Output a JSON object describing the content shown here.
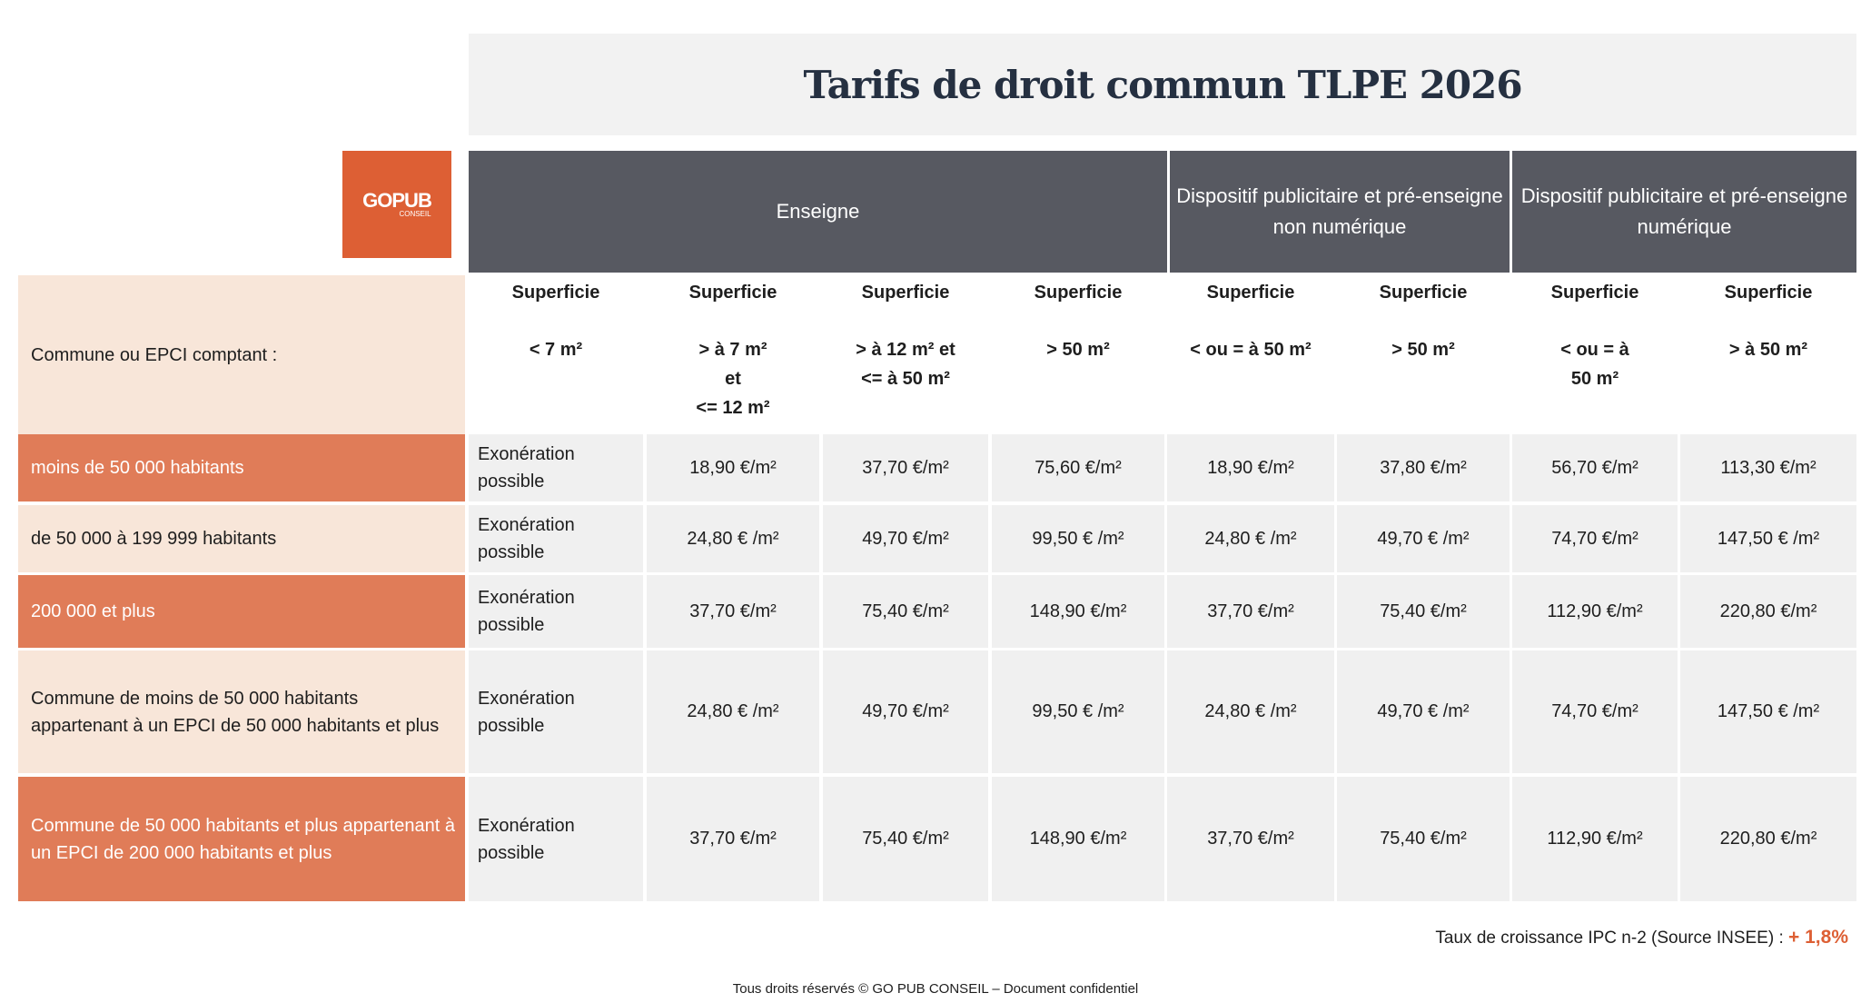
{
  "title": "Tarifs de droit commun TLPE 2026",
  "logo": {
    "main": "GOPUB",
    "sub": "CONSEIL"
  },
  "groups": {
    "enseigne": "Enseigne",
    "non_numerique": "Dispositif publicitaire et pré-enseigne non numérique",
    "numerique": "Dispositif publicitaire et pré-enseigne numérique"
  },
  "header_label": "Commune ou EPCI comptant :",
  "columns": [
    {
      "sup": "Superficie",
      "range": "< 7 m²"
    },
    {
      "sup": "Superficie",
      "range": "> à 7 m²\net\n<= 12 m²"
    },
    {
      "sup": "Superficie",
      "range": "> à 12 m² et\n<= à 50 m²"
    },
    {
      "sup": "Superficie",
      "range": "> 50 m²"
    },
    {
      "sup": "Superficie",
      "range": "< ou = à 50 m²"
    },
    {
      "sup": "Superficie",
      "range": "> 50 m²"
    },
    {
      "sup": "Superficie",
      "range": "< ou = à\n50 m²"
    },
    {
      "sup": "Superficie",
      "range": "> à 50 m²"
    }
  ],
  "rows": [
    {
      "label": "moins de 50 000 habitants",
      "values": [
        "Exonération possible",
        "18,90 €/m²",
        "37,70 €/m²",
        "75,60 €/m²",
        "18,90 €/m²",
        "37,80 €/m²",
        "56,70 €/m²",
        "113,30 €/m²"
      ]
    },
    {
      "label": "de 50 000 à 199 999 habitants",
      "values": [
        "Exonération possible",
        "24,80 € /m²",
        "49,70 €/m²",
        "99,50 € /m²",
        "24,80 € /m²",
        "49,70 € /m²",
        "74,70 €/m²",
        "147,50 € /m²"
      ]
    },
    {
      "label": "200 000 et plus",
      "values": [
        "Exonération possible",
        "37,70 €/m²",
        "75,40 €/m²",
        "148,90 €/m²",
        "37,70 €/m²",
        "75,40 €/m²",
        "112,90 €/m²",
        "220,80 €/m²"
      ]
    },
    {
      "label": "Commune de moins de 50 000 habitants appartenant à un EPCI de 50 000 habitants et plus",
      "values": [
        "Exonération possible",
        "24,80 € /m²",
        "49,70 €/m²",
        "99,50 € /m²",
        "24,80 € /m²",
        "49,70 € /m²",
        "74,70 €/m²",
        "147,50 € /m²"
      ]
    },
    {
      "label": "Commune de 50 000 habitants et plus appartenant à un EPCI de 200 000 habitants et plus",
      "values": [
        "Exonération possible",
        "37,70 €/m²",
        "75,40 €/m²",
        "148,90 €/m²",
        "37,70 €/m²",
        "75,40 €/m²",
        "112,90 €/m²",
        "220,80 €/m²"
      ]
    }
  ],
  "footer": {
    "rate_label": "Taux de croissance IPC n-2 (Source INSEE) :",
    "rate_value": "+ 1,8%",
    "copyright": "Tous droits réservés ©  GO PUB CONSEIL – Document confidentiel"
  },
  "colors": {
    "accent": "#dd5f34",
    "row_orange": "#e07c58",
    "row_light": "#f8e6d9",
    "header_dark": "#575961",
    "cell_grey": "#f0f0f0"
  }
}
